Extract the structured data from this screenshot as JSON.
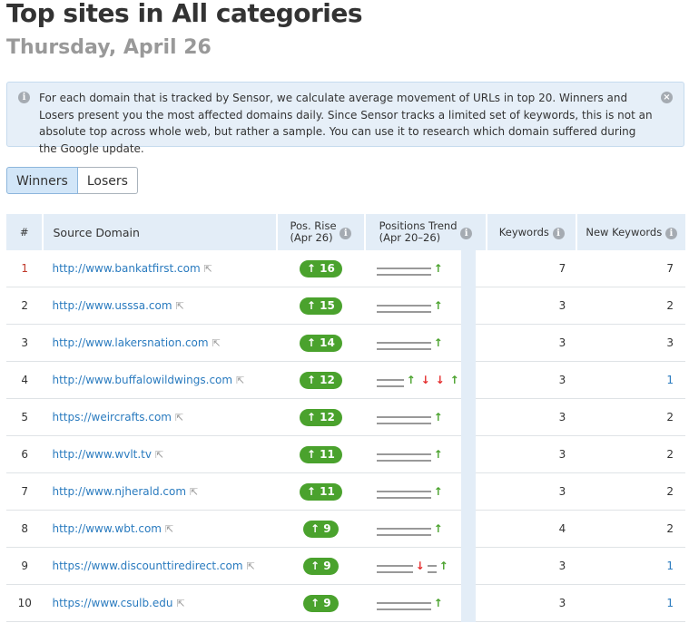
{
  "title": "Top sites in All categories",
  "date": "Thursday, April 26",
  "info": {
    "text": "For each domain that is tracked by Sensor, we calculate average movement of URLs in top 20. Winners and Losers present you the most affected domains daily. Since Sensor tracks a limited set of keywords, this is not an absolute top across whole web, but rather a sample. You can use it to research which domain suffered during the Google update.",
    "icon": "info-icon",
    "close_icon": "close-circle-icon"
  },
  "tabs": [
    {
      "label": "Winners",
      "active": true
    },
    {
      "label": "Losers",
      "active": false
    }
  ],
  "table": {
    "headers": {
      "num": "#",
      "domain": "Source Domain",
      "pos_rise": "Pos. Rise",
      "pos_rise_sub": "(Apr 26)",
      "trend": "Positions Trend",
      "trend_sub": "(Apr 20–26)",
      "keywords": "Keywords",
      "new_keywords": "New Keywords"
    },
    "rows": [
      {
        "n": "1",
        "domain": "http://www.bankatfirst.com",
        "rise": "16",
        "trend": [
          "dash",
          "dash",
          "dash",
          "dash",
          "dash",
          "dash",
          "up"
        ],
        "keywords": "7",
        "new_keywords": "7"
      },
      {
        "n": "2",
        "domain": "http://www.usssa.com",
        "rise": "15",
        "trend": [
          "dash",
          "dash",
          "dash",
          "dash",
          "dash",
          "dash",
          "up"
        ],
        "keywords": "3",
        "new_keywords": "2"
      },
      {
        "n": "3",
        "domain": "http://www.lakersnation.com",
        "rise": "14",
        "trend": [
          "dash",
          "dash",
          "dash",
          "dash",
          "dash",
          "dash",
          "up"
        ],
        "keywords": "3",
        "new_keywords": "3"
      },
      {
        "n": "4",
        "domain": "http://www.buffalowildwings.com",
        "rise": "12",
        "trend": [
          "dash",
          "dash",
          "dash",
          "up",
          "down",
          "down",
          "up"
        ],
        "keywords": "3",
        "new_keywords": "1"
      },
      {
        "n": "5",
        "domain": "https://weircrafts.com",
        "rise": "12",
        "trend": [
          "dash",
          "dash",
          "dash",
          "dash",
          "dash",
          "dash",
          "up"
        ],
        "keywords": "3",
        "new_keywords": "2"
      },
      {
        "n": "6",
        "domain": "http://www.wvlt.tv",
        "rise": "11",
        "trend": [
          "dash",
          "dash",
          "dash",
          "dash",
          "dash",
          "dash",
          "up"
        ],
        "keywords": "3",
        "new_keywords": "2"
      },
      {
        "n": "7",
        "domain": "http://www.njherald.com",
        "rise": "11",
        "trend": [
          "dash",
          "dash",
          "dash",
          "dash",
          "dash",
          "dash",
          "up"
        ],
        "keywords": "3",
        "new_keywords": "2"
      },
      {
        "n": "8",
        "domain": "http://www.wbt.com",
        "rise": "9",
        "trend": [
          "dash",
          "dash",
          "dash",
          "dash",
          "dash",
          "dash",
          "up"
        ],
        "keywords": "4",
        "new_keywords": "2"
      },
      {
        "n": "9",
        "domain": "https://www.discounttiredirect.com",
        "rise": "9",
        "trend": [
          "dash",
          "dash",
          "dash",
          "dash",
          "down",
          "dash",
          "up"
        ],
        "keywords": "3",
        "new_keywords": "1"
      },
      {
        "n": "10",
        "domain": "https://www.csulb.edu",
        "rise": "9",
        "trend": [
          "dash",
          "dash",
          "dash",
          "dash",
          "dash",
          "dash",
          "up"
        ],
        "keywords": "3",
        "new_keywords": "1"
      }
    ]
  },
  "colors": {
    "accent": "#2a7bbf",
    "badge": "#4aa22d",
    "up": "#4aa22d",
    "down": "#e53030",
    "header_bg": "#e3edf7"
  }
}
